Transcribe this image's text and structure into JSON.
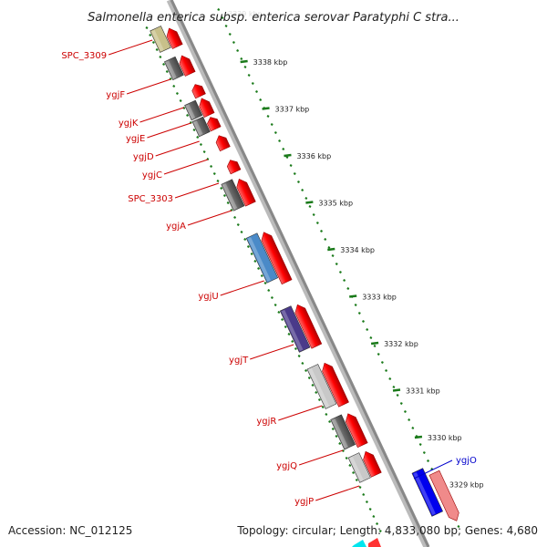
{
  "title": "Salmonella enterica subsp. enterica serovar Paratyphi C stra...",
  "footer": {
    "accession": "Accession: NC_012125",
    "topology": "Topology: circular; Length: 4,833,080 bp; Genes: 4,680"
  },
  "colors": {
    "forward_gene": "#ff0000",
    "reverse_gene": "#666666",
    "tick": "#1a7a1a",
    "label_reverse": "#cc0000",
    "label_forward": "#0000cc",
    "backbone": "#888888"
  },
  "ruler": {
    "ticks": [
      {
        "label": "3338 kbp"
      },
      {
        "label": "3337 kbp"
      },
      {
        "label": "3336 kbp"
      },
      {
        "label": "3335 kbp"
      },
      {
        "label": "3334 kbp"
      },
      {
        "label": "3333 kbp"
      },
      {
        "label": "3332 kbp"
      },
      {
        "label": "3331 kbp"
      },
      {
        "label": "3330 kbp"
      },
      {
        "label": "3329 kbp"
      }
    ]
  },
  "genes": [
    {
      "name": "SPC_3309",
      "strand": "reverse",
      "color": "#c8c08a"
    },
    {
      "name": "ygjF",
      "strand": "reverse",
      "color": "#666666"
    },
    {
      "name": "ygjK",
      "strand": "reverse",
      "color": "#666666"
    },
    {
      "name": "ygjE",
      "strand": "reverse",
      "color": "#666666"
    },
    {
      "name": "ygjD",
      "strand": "reverse",
      "color": "#ff0000"
    },
    {
      "name": "ygjC",
      "strand": "reverse",
      "color": "#ff0000"
    },
    {
      "name": "SPC_3303",
      "strand": "reverse",
      "color": "#666666"
    },
    {
      "name": "ygjA",
      "strand": "reverse",
      "color": "#666666"
    },
    {
      "name": "ygjU",
      "strand": "reverse",
      "color": "#4a8ac8"
    },
    {
      "name": "ygjT",
      "strand": "reverse",
      "color": "#4a3a8a"
    },
    {
      "name": "ygjR",
      "strand": "reverse",
      "color": "#c8c8c8"
    },
    {
      "name": "ygjQ",
      "strand": "reverse",
      "color": "#666666"
    },
    {
      "name": "ygjP",
      "strand": "reverse",
      "color": "#c8c8c8"
    },
    {
      "name": "ygjO",
      "strand": "forward",
      "color": "#0000ee"
    }
  ]
}
